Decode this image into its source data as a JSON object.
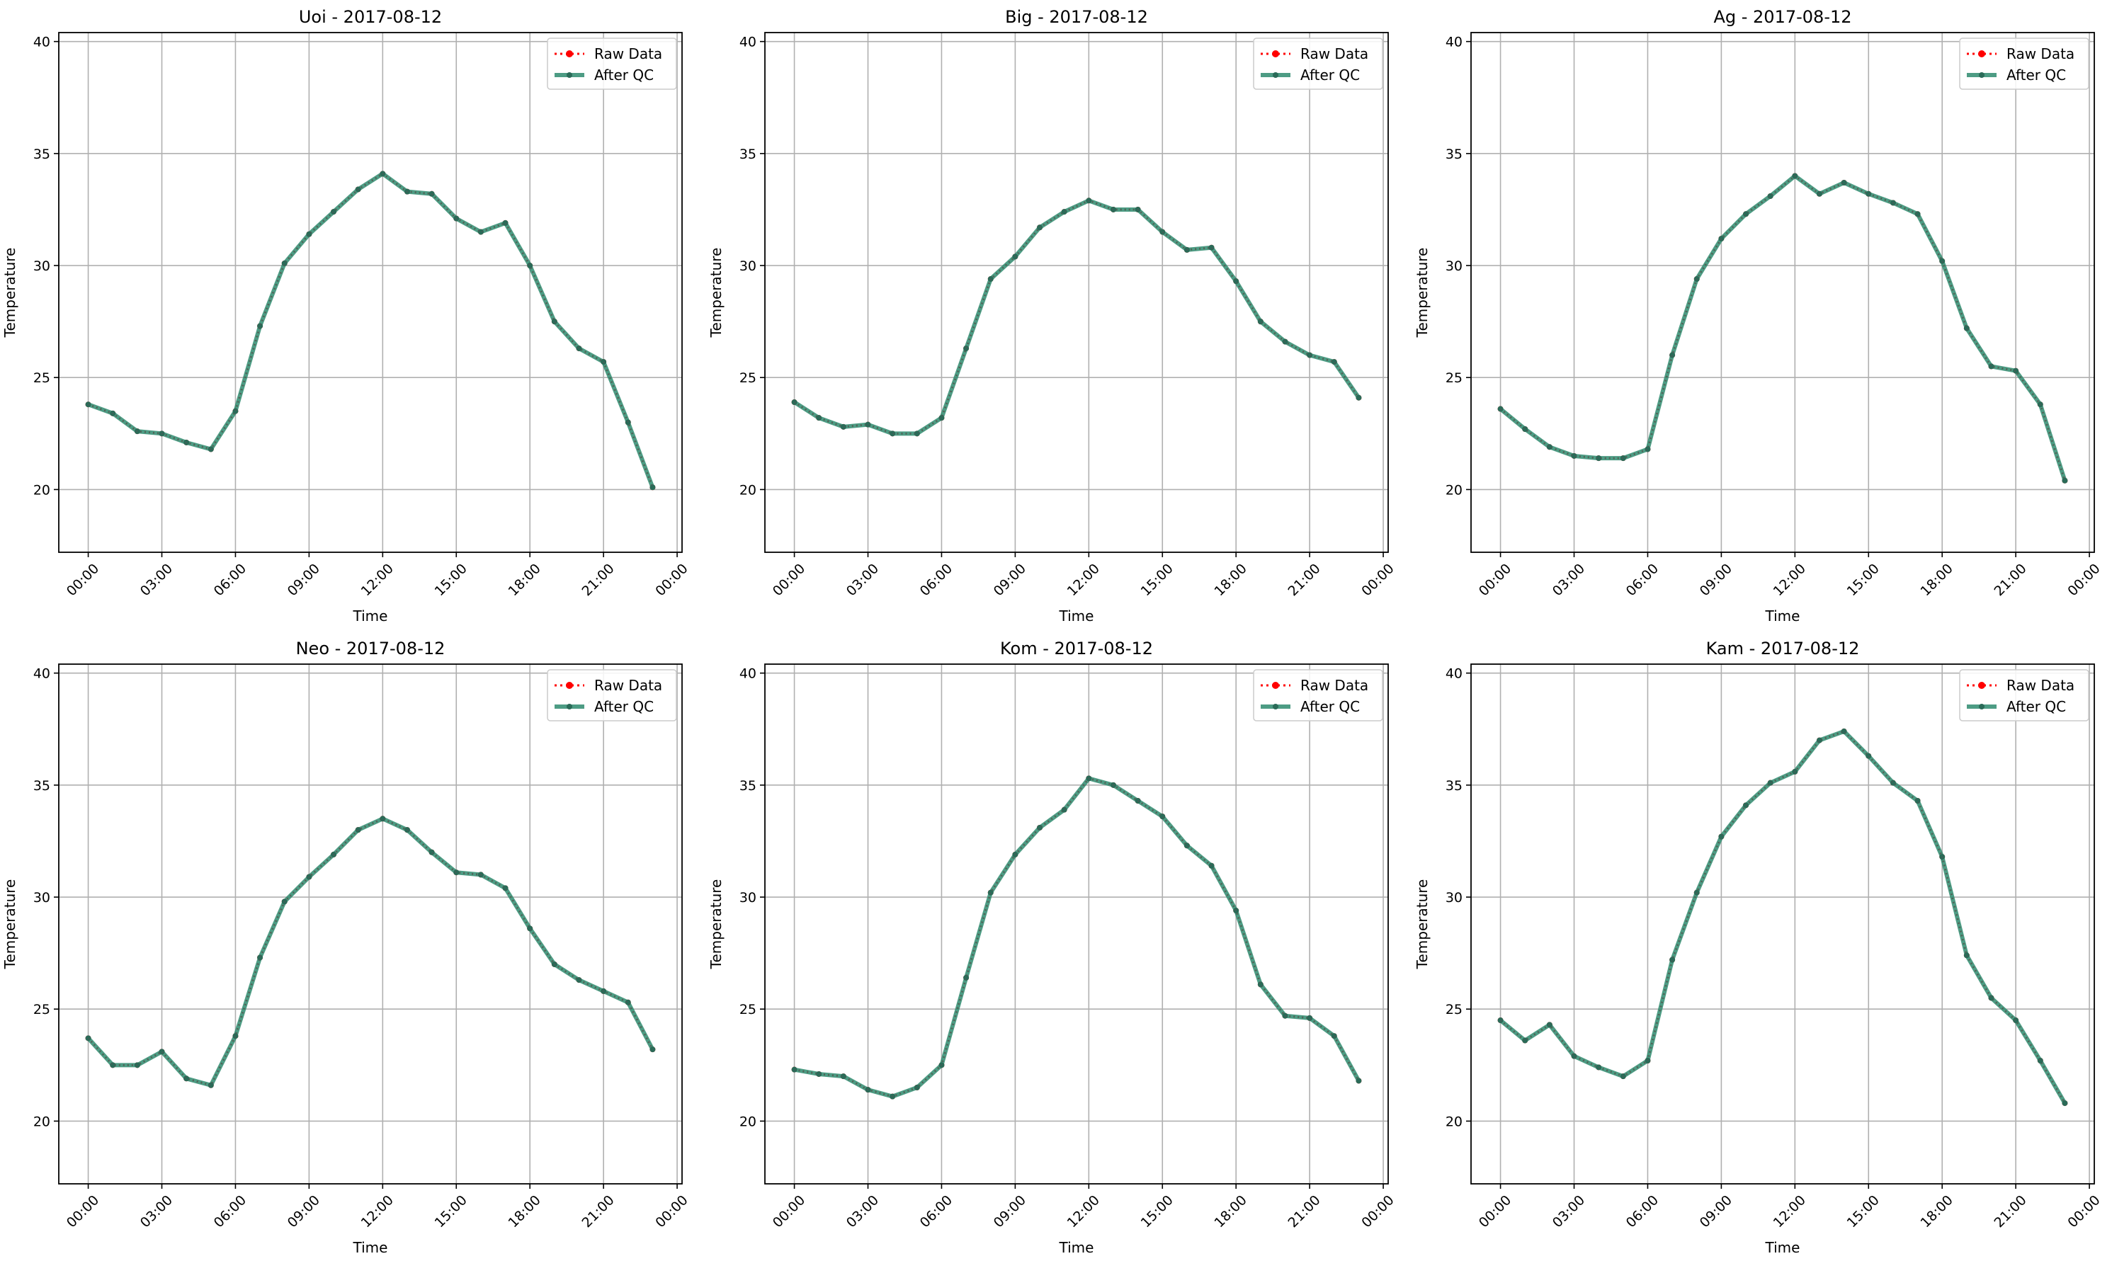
{
  "figure": {
    "background": "#ffffff"
  },
  "chart_data": [
    {
      "type": "line",
      "title": "Uoi - 2017-08-12",
      "xlabel": "Time",
      "ylabel": "Temperature",
      "date": "2017-08-12",
      "x_ticks": [
        "00:00",
        "03:00",
        "06:00",
        "09:00",
        "12:00",
        "15:00",
        "18:00",
        "21:00",
        "00:00"
      ],
      "x_range_hours": [
        -1.2,
        24.2
      ],
      "ylim": [
        17.2,
        40.4
      ],
      "y_ticks": [
        20,
        25,
        30,
        35,
        40
      ],
      "grid": true,
      "legend_position": "top-right",
      "hours": [
        0,
        1,
        2,
        3,
        4,
        5,
        6,
        7,
        8,
        9,
        10,
        11,
        12,
        13,
        14,
        15,
        16,
        17,
        18,
        19,
        20,
        21,
        22,
        23
      ],
      "series": [
        {
          "name": "Raw Data",
          "color": "#ff0000",
          "style": "dotted",
          "values": [
            23.8,
            23.4,
            22.6,
            22.5,
            22.1,
            21.8,
            23.5,
            27.3,
            30.1,
            31.4,
            32.4,
            33.4,
            34.1,
            33.3,
            33.2,
            32.1,
            31.5,
            31.9,
            30.0,
            27.5,
            26.3,
            25.7,
            23.0,
            20.1
          ]
        },
        {
          "name": "After QC",
          "color": "#2e8b6e",
          "style": "solid",
          "values": [
            23.8,
            23.4,
            22.6,
            22.5,
            22.1,
            21.8,
            23.5,
            27.3,
            30.1,
            31.4,
            32.4,
            33.4,
            34.1,
            33.3,
            33.2,
            32.1,
            31.5,
            31.9,
            30.0,
            27.5,
            26.3,
            25.7,
            23.0,
            20.1
          ]
        }
      ]
    },
    {
      "type": "line",
      "title": "Big - 2017-08-12",
      "xlabel": "Time",
      "ylabel": "Temperature",
      "date": "2017-08-12",
      "x_ticks": [
        "00:00",
        "03:00",
        "06:00",
        "09:00",
        "12:00",
        "15:00",
        "18:00",
        "21:00",
        "00:00"
      ],
      "x_range_hours": [
        -1.2,
        24.2
      ],
      "ylim": [
        17.2,
        40.4
      ],
      "y_ticks": [
        20,
        25,
        30,
        35,
        40
      ],
      "grid": true,
      "legend_position": "top-right",
      "hours": [
        0,
        1,
        2,
        3,
        4,
        5,
        6,
        7,
        8,
        9,
        10,
        11,
        12,
        13,
        14,
        15,
        16,
        17,
        18,
        19,
        20,
        21,
        22,
        23
      ],
      "series": [
        {
          "name": "Raw Data",
          "color": "#ff0000",
          "style": "dotted",
          "values": [
            23.9,
            23.2,
            22.8,
            22.9,
            22.5,
            22.5,
            23.2,
            26.3,
            29.4,
            30.4,
            31.7,
            32.4,
            32.9,
            32.5,
            32.5,
            31.5,
            30.7,
            30.8,
            29.3,
            27.5,
            26.6,
            26.0,
            25.7,
            24.1
          ]
        },
        {
          "name": "After QC",
          "color": "#2e8b6e",
          "style": "solid",
          "values": [
            23.9,
            23.2,
            22.8,
            22.9,
            22.5,
            22.5,
            23.2,
            26.3,
            29.4,
            30.4,
            31.7,
            32.4,
            32.9,
            32.5,
            32.5,
            31.5,
            30.7,
            30.8,
            29.3,
            27.5,
            26.6,
            26.0,
            25.7,
            24.1
          ]
        }
      ]
    },
    {
      "type": "line",
      "title": "Ag - 2017-08-12",
      "xlabel": "Time",
      "ylabel": "Temperature",
      "date": "2017-08-12",
      "x_ticks": [
        "00:00",
        "03:00",
        "06:00",
        "09:00",
        "12:00",
        "15:00",
        "18:00",
        "21:00",
        "00:00"
      ],
      "x_range_hours": [
        -1.2,
        24.2
      ],
      "ylim": [
        17.2,
        40.4
      ],
      "y_ticks": [
        20,
        25,
        30,
        35,
        40
      ],
      "grid": true,
      "legend_position": "top-right",
      "hours": [
        0,
        1,
        2,
        3,
        4,
        5,
        6,
        7,
        8,
        9,
        10,
        11,
        12,
        13,
        14,
        15,
        16,
        17,
        18,
        19,
        20,
        21,
        22,
        23
      ],
      "series": [
        {
          "name": "Raw Data",
          "color": "#ff0000",
          "style": "dotted",
          "values": [
            23.6,
            22.7,
            21.9,
            21.5,
            21.4,
            21.4,
            21.8,
            26.0,
            29.4,
            31.2,
            32.3,
            33.1,
            34.0,
            33.2,
            33.7,
            33.2,
            32.8,
            32.3,
            30.2,
            27.2,
            25.5,
            25.3,
            23.8,
            20.4
          ]
        },
        {
          "name": "After QC",
          "color": "#2e8b6e",
          "style": "solid",
          "values": [
            23.6,
            22.7,
            21.9,
            21.5,
            21.4,
            21.4,
            21.8,
            26.0,
            29.4,
            31.2,
            32.3,
            33.1,
            34.0,
            33.2,
            33.7,
            33.2,
            32.8,
            32.3,
            30.2,
            27.2,
            25.5,
            25.3,
            23.8,
            20.4
          ]
        }
      ]
    },
    {
      "type": "line",
      "title": "Neo - 2017-08-12",
      "xlabel": "Time",
      "ylabel": "Temperature",
      "date": "2017-08-12",
      "x_ticks": [
        "00:00",
        "03:00",
        "06:00",
        "09:00",
        "12:00",
        "15:00",
        "18:00",
        "21:00",
        "00:00"
      ],
      "x_range_hours": [
        -1.2,
        24.2
      ],
      "ylim": [
        17.2,
        40.4
      ],
      "y_ticks": [
        20,
        25,
        30,
        35,
        40
      ],
      "grid": true,
      "legend_position": "top-right",
      "hours": [
        0,
        1,
        2,
        3,
        4,
        5,
        6,
        7,
        8,
        9,
        10,
        11,
        12,
        13,
        14,
        15,
        16,
        17,
        18,
        19,
        20,
        21,
        22,
        23
      ],
      "series": [
        {
          "name": "Raw Data",
          "color": "#ff0000",
          "style": "dotted",
          "values": [
            23.7,
            22.5,
            22.5,
            23.1,
            21.9,
            21.6,
            23.8,
            27.3,
            29.8,
            30.9,
            31.9,
            33.0,
            33.5,
            33.0,
            32.0,
            31.1,
            31.0,
            30.4,
            28.6,
            27.0,
            26.3,
            25.8,
            25.3,
            23.2
          ]
        },
        {
          "name": "After QC",
          "color": "#2e8b6e",
          "style": "solid",
          "values": [
            23.7,
            22.5,
            22.5,
            23.1,
            21.9,
            21.6,
            23.8,
            27.3,
            29.8,
            30.9,
            31.9,
            33.0,
            33.5,
            33.0,
            32.0,
            31.1,
            31.0,
            30.4,
            28.6,
            27.0,
            26.3,
            25.8,
            25.3,
            23.2
          ]
        }
      ]
    },
    {
      "type": "line",
      "title": "Kom - 2017-08-12",
      "xlabel": "Time",
      "ylabel": "Temperature",
      "date": "2017-08-12",
      "x_ticks": [
        "00:00",
        "03:00",
        "06:00",
        "09:00",
        "12:00",
        "15:00",
        "18:00",
        "21:00",
        "00:00"
      ],
      "x_range_hours": [
        -1.2,
        24.2
      ],
      "ylim": [
        17.2,
        40.4
      ],
      "y_ticks": [
        20,
        25,
        30,
        35,
        40
      ],
      "grid": true,
      "legend_position": "top-right",
      "hours": [
        0,
        1,
        2,
        3,
        4,
        5,
        6,
        7,
        8,
        9,
        10,
        11,
        12,
        13,
        14,
        15,
        16,
        17,
        18,
        19,
        20,
        21,
        22,
        23
      ],
      "series": [
        {
          "name": "Raw Data",
          "color": "#ff0000",
          "style": "dotted",
          "values": [
            22.3,
            22.1,
            22.0,
            21.4,
            21.1,
            21.5,
            22.5,
            26.4,
            30.2,
            31.9,
            33.1,
            33.9,
            35.3,
            35.0,
            34.3,
            33.6,
            32.3,
            31.4,
            29.4,
            26.1,
            24.7,
            24.6,
            23.8,
            21.8
          ]
        },
        {
          "name": "After QC",
          "color": "#2e8b6e",
          "style": "solid",
          "values": [
            22.3,
            22.1,
            22.0,
            21.4,
            21.1,
            21.5,
            22.5,
            26.4,
            30.2,
            31.9,
            33.1,
            33.9,
            35.3,
            35.0,
            34.3,
            33.6,
            32.3,
            31.4,
            29.4,
            26.1,
            24.7,
            24.6,
            23.8,
            21.8
          ]
        }
      ]
    },
    {
      "type": "line",
      "title": "Kam - 2017-08-12",
      "xlabel": "Time",
      "ylabel": "Temperature",
      "date": "2017-08-12",
      "x_ticks": [
        "00:00",
        "03:00",
        "06:00",
        "09:00",
        "12:00",
        "15:00",
        "18:00",
        "21:00",
        "00:00"
      ],
      "x_range_hours": [
        -1.2,
        24.2
      ],
      "ylim": [
        17.2,
        40.4
      ],
      "y_ticks": [
        20,
        25,
        30,
        35,
        40
      ],
      "grid": true,
      "legend_position": "top-right",
      "hours": [
        0,
        1,
        2,
        3,
        4,
        5,
        6,
        7,
        8,
        9,
        10,
        11,
        12,
        13,
        14,
        15,
        16,
        17,
        18,
        19,
        20,
        21,
        22,
        23
      ],
      "series": [
        {
          "name": "Raw Data",
          "color": "#ff0000",
          "style": "dotted",
          "values": [
            24.5,
            23.6,
            24.3,
            22.9,
            22.4,
            22.0,
            22.7,
            27.2,
            30.2,
            32.7,
            34.1,
            35.1,
            35.6,
            37.0,
            37.4,
            36.3,
            35.1,
            34.3,
            31.8,
            27.4,
            25.5,
            24.5,
            22.7,
            20.8
          ]
        },
        {
          "name": "After QC",
          "color": "#2e8b6e",
          "style": "solid",
          "values": [
            24.5,
            23.6,
            24.3,
            22.9,
            22.4,
            22.0,
            22.7,
            27.2,
            30.2,
            32.7,
            34.1,
            35.1,
            35.6,
            37.0,
            37.4,
            36.3,
            35.1,
            34.3,
            31.8,
            27.4,
            25.5,
            24.5,
            22.7,
            20.8
          ]
        }
      ]
    }
  ]
}
